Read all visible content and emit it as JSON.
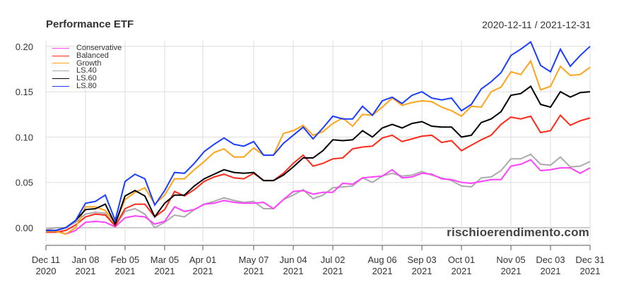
{
  "header": {
    "title": "Performance ETF",
    "date_range": "2020-12-11 / 2021-12-31"
  },
  "watermark": "rischioerendimento.com",
  "chart_data": {
    "type": "line",
    "title": "Performance ETF",
    "subtitle": "2020-12-11 / 2021-12-31",
    "xlabel": "",
    "ylabel": "",
    "ylim": [
      -0.02,
      0.205
    ],
    "yticks": [
      "0.00",
      "0.05",
      "0.10",
      "0.15",
      "0.20"
    ],
    "ytick_values": [
      0.0,
      0.05,
      0.1,
      0.15,
      0.2
    ],
    "xticks": [
      {
        "label": "Dec 11",
        "year": "2020",
        "week": 0
      },
      {
        "label": "Jan 08",
        "year": "2021",
        "week": 4
      },
      {
        "label": "Feb 05",
        "year": "2021",
        "week": 8
      },
      {
        "label": "Mar 05",
        "year": "2021",
        "week": 12
      },
      {
        "label": "Apr 01",
        "year": "2021",
        "week": 15.857
      },
      {
        "label": "May 07",
        "year": "2021",
        "week": 21
      },
      {
        "label": "Jun 04",
        "year": "2021",
        "week": 25
      },
      {
        "label": "Jul 02",
        "year": "2021",
        "week": 29
      },
      {
        "label": "Aug 06",
        "year": "2021",
        "week": 34
      },
      {
        "label": "Sep 03",
        "year": "2021",
        "week": 38
      },
      {
        "label": "Oct 01",
        "year": "2021",
        "week": 42
      },
      {
        "label": "Nov 05",
        "year": "2021",
        "week": 47
      },
      {
        "label": "Dec 03",
        "year": "2021",
        "week": 51
      },
      {
        "label": "Dec 31",
        "year": "2021",
        "week": 55
      }
    ],
    "x_start": "2020-12-11",
    "x_end": "2021-12-31",
    "x_frequency": "weekly",
    "grid": true,
    "legend_position": "top-left",
    "series": [
      {
        "name": "Conservative",
        "color": "#ff40ff",
        "values": [
          -0.003,
          -0.003,
          -0.007,
          -0.003,
          0.006,
          0.007,
          0.006,
          0.001,
          0.011,
          0.013,
          0.012,
          0.004,
          0.007,
          0.023,
          0.018,
          0.02,
          0.026,
          0.027,
          0.03,
          0.028,
          0.027,
          0.027,
          0.028,
          0.021,
          0.031,
          0.04,
          0.041,
          0.037,
          0.039,
          0.039,
          0.049,
          0.048,
          0.055,
          0.056,
          0.057,
          0.064,
          0.055,
          0.056,
          0.06,
          0.059,
          0.054,
          0.053,
          0.05,
          0.049,
          0.051,
          0.053,
          0.053,
          0.068,
          0.07,
          0.075,
          0.063,
          0.064,
          0.066,
          0.066,
          0.06,
          0.066
        ]
      },
      {
        "name": "Balanced",
        "color": "#ff2a1a",
        "values": [
          -0.005,
          -0.005,
          -0.003,
          0.003,
          0.012,
          0.015,
          0.014,
          0.002,
          0.021,
          0.026,
          0.026,
          0.012,
          0.02,
          0.04,
          0.035,
          0.042,
          0.051,
          0.056,
          0.059,
          0.055,
          0.054,
          0.06,
          0.052,
          0.052,
          0.06,
          0.071,
          0.08,
          0.068,
          0.071,
          0.076,
          0.077,
          0.087,
          0.089,
          0.09,
          0.099,
          0.102,
          0.095,
          0.098,
          0.101,
          0.102,
          0.094,
          0.096,
          0.085,
          0.091,
          0.097,
          0.102,
          0.114,
          0.122,
          0.12,
          0.123,
          0.105,
          0.107,
          0.124,
          0.113,
          0.118,
          0.121
        ]
      },
      {
        "name": "Growth",
        "color": "#ffa31a",
        "values": [
          -0.004,
          -0.004,
          -0.007,
          0.0,
          0.023,
          0.023,
          0.019,
          0.005,
          0.031,
          0.039,
          0.044,
          0.026,
          0.036,
          0.054,
          0.054,
          0.064,
          0.073,
          0.083,
          0.087,
          0.078,
          0.078,
          0.088,
          0.08,
          0.08,
          0.104,
          0.107,
          0.113,
          0.102,
          0.106,
          0.115,
          0.121,
          0.112,
          0.125,
          0.124,
          0.133,
          0.143,
          0.135,
          0.138,
          0.14,
          0.139,
          0.133,
          0.129,
          0.123,
          0.134,
          0.133,
          0.15,
          0.155,
          0.172,
          0.169,
          0.184,
          0.152,
          0.156,
          0.178,
          0.168,
          0.169,
          0.177
        ]
      },
      {
        "name": "LS.40",
        "color": "#aaaaaa",
        "values": [
          -0.002,
          0.0,
          0.0,
          0.006,
          0.015,
          0.017,
          0.016,
          0.002,
          0.018,
          0.021,
          0.015,
          0.0,
          0.006,
          0.014,
          0.012,
          0.02,
          0.026,
          0.029,
          0.033,
          0.03,
          0.028,
          0.029,
          0.021,
          0.021,
          0.031,
          0.036,
          0.042,
          0.032,
          0.036,
          0.044,
          0.045,
          0.046,
          0.055,
          0.05,
          0.057,
          0.06,
          0.057,
          0.058,
          0.062,
          0.058,
          0.055,
          0.052,
          0.046,
          0.045,
          0.055,
          0.056,
          0.063,
          0.076,
          0.076,
          0.081,
          0.07,
          0.069,
          0.078,
          0.067,
          0.068,
          0.073
        ]
      },
      {
        "name": "LS.60",
        "color": "#000000",
        "values": [
          -0.003,
          -0.003,
          0.0,
          0.008,
          0.02,
          0.021,
          0.026,
          0.004,
          0.035,
          0.041,
          0.035,
          0.012,
          0.027,
          0.036,
          0.036,
          0.046,
          0.054,
          0.059,
          0.064,
          0.061,
          0.06,
          0.061,
          0.052,
          0.052,
          0.058,
          0.067,
          0.077,
          0.077,
          0.085,
          0.097,
          0.096,
          0.097,
          0.107,
          0.1,
          0.11,
          0.114,
          0.11,
          0.115,
          0.117,
          0.112,
          0.111,
          0.111,
          0.1,
          0.102,
          0.116,
          0.12,
          0.128,
          0.146,
          0.148,
          0.156,
          0.136,
          0.133,
          0.15,
          0.144,
          0.149,
          0.15
        ]
      },
      {
        "name": "LS.80",
        "color": "#1a3dff",
        "values": [
          -0.003,
          -0.003,
          0.0,
          0.008,
          0.027,
          0.029,
          0.036,
          0.008,
          0.051,
          0.059,
          0.054,
          0.025,
          0.041,
          0.061,
          0.06,
          0.071,
          0.084,
          0.092,
          0.099,
          0.092,
          0.09,
          0.095,
          0.08,
          0.08,
          0.093,
          0.102,
          0.111,
          0.098,
          0.11,
          0.123,
          0.12,
          0.12,
          0.134,
          0.124,
          0.14,
          0.144,
          0.137,
          0.146,
          0.15,
          0.143,
          0.141,
          0.143,
          0.129,
          0.136,
          0.153,
          0.161,
          0.171,
          0.19,
          0.197,
          0.205,
          0.179,
          0.172,
          0.197,
          0.178,
          0.19,
          0.2
        ]
      }
    ]
  },
  "legend": {
    "items": [
      {
        "label": "Conservative",
        "color": "#ff40ff"
      },
      {
        "label": "Balanced",
        "color": "#ff2a1a"
      },
      {
        "label": "Growth",
        "color": "#ffa31a"
      },
      {
        "label": "LS.40",
        "color": "#aaaaaa"
      },
      {
        "label": "LS.60",
        "color": "#000000"
      },
      {
        "label": "LS.80",
        "color": "#1a3dff"
      }
    ]
  }
}
